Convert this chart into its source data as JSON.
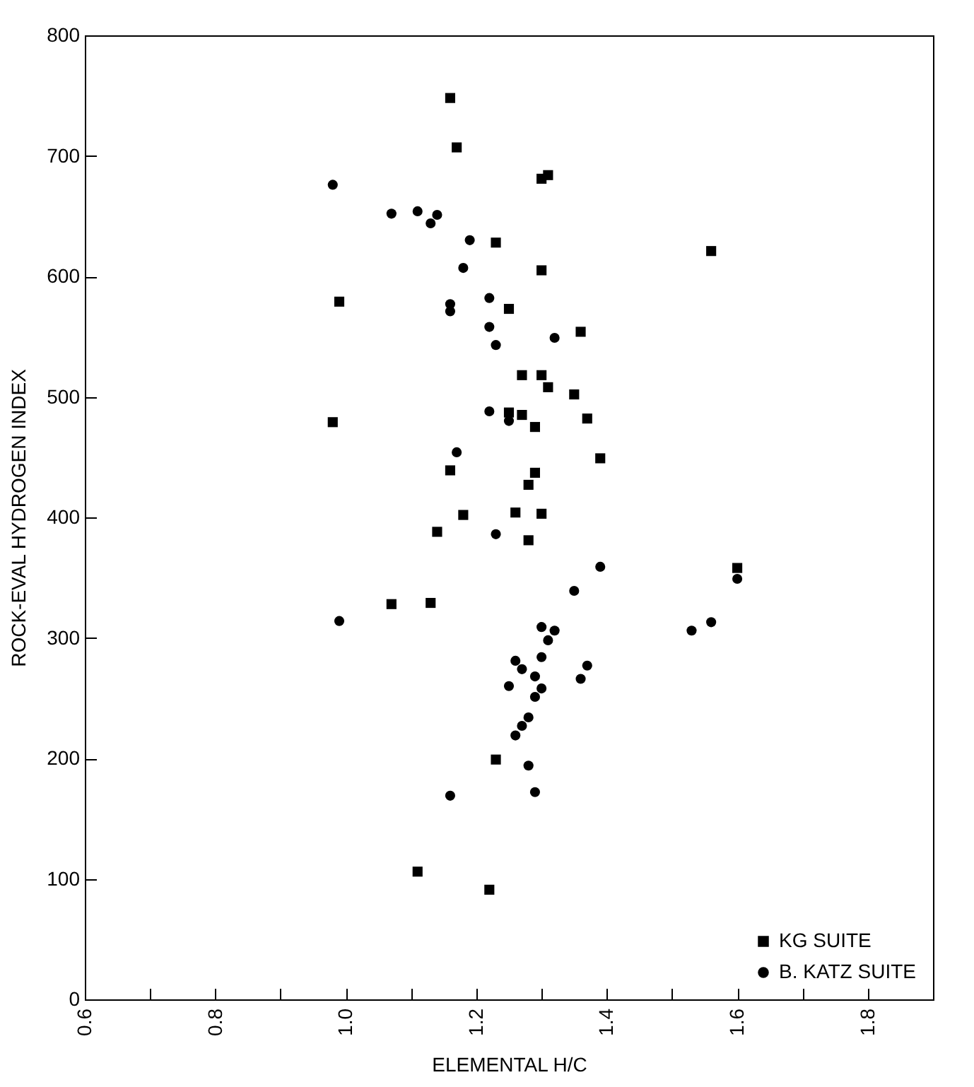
{
  "chart_data": {
    "type": "scatter",
    "xlabel": "ELEMENTAL H/C",
    "ylabel": "ROCK-EVAL HYDROGEN INDEX",
    "xlim": [
      0.6,
      1.9
    ],
    "ylim": [
      0,
      800
    ],
    "xticks": [
      0.6,
      {
        "value": 0.7,
        "label": null
      },
      0.8,
      {
        "value": 0.9,
        "label": null
      },
      {
        "value": 1,
        "label": "1.0"
      },
      {
        "value": 1.1,
        "label": null
      },
      1.2,
      {
        "value": 1.3,
        "label": null
      },
      1.4,
      {
        "value": 1.5,
        "label": null
      },
      1.6,
      {
        "value": 1.7,
        "label": null
      },
      1.8
    ],
    "yticks": [
      0,
      100,
      200,
      300,
      400,
      500,
      600,
      700,
      800
    ],
    "grid": false,
    "legend": "bottom right",
    "series": [
      {
        "name": "KG  SUITE",
        "color": "#000000",
        "marker": "square",
        "x": [
          1.16,
          1.17,
          1.3,
          1.31,
          1.23,
          1.56,
          1.3,
          0.99,
          1.25,
          1.36,
          1.27,
          1.3,
          1.31,
          1.35,
          0.98,
          1.25,
          1.27,
          1.29,
          1.37,
          1.39,
          1.16,
          1.29,
          1.28,
          1.18,
          1.26,
          1.3,
          1.14,
          1.28,
          1.6,
          1.07,
          1.13,
          1.23,
          1.11,
          1.22
        ],
        "values": [
          748,
          707,
          681,
          684,
          628,
          621,
          605,
          579,
          573,
          554,
          518,
          518,
          508,
          502,
          479,
          487,
          485,
          475,
          482,
          449,
          439,
          437,
          427,
          402,
          404,
          403,
          388,
          381,
          358,
          328,
          329,
          199,
          106,
          91
        ]
      },
      {
        "name": "B. KATZ SUITE",
        "color": "#000000",
        "marker": "circle",
        "x": [
          0.98,
          1.07,
          1.11,
          1.13,
          1.14,
          1.19,
          1.18,
          1.16,
          1.16,
          1.22,
          1.22,
          1.23,
          1.32,
          1.22,
          1.25,
          1.17,
          1.23,
          1.39,
          1.35,
          0.99,
          1.3,
          1.32,
          1.31,
          1.3,
          1.26,
          1.27,
          1.29,
          1.3,
          1.25,
          1.29,
          1.37,
          1.36,
          1.28,
          1.27,
          1.26,
          1.28,
          1.29,
          1.16,
          1.6,
          1.56,
          1.53
        ],
        "values": [
          676,
          652,
          654,
          644,
          651,
          630,
          607,
          577,
          571,
          582,
          558,
          543,
          549,
          488,
          480,
          454,
          386,
          359,
          339,
          314,
          309,
          306,
          298,
          284,
          281,
          274,
          268,
          258,
          260,
          251,
          277,
          266,
          234,
          227,
          219,
          194,
          172,
          169,
          349,
          313,
          306
        ]
      }
    ]
  }
}
